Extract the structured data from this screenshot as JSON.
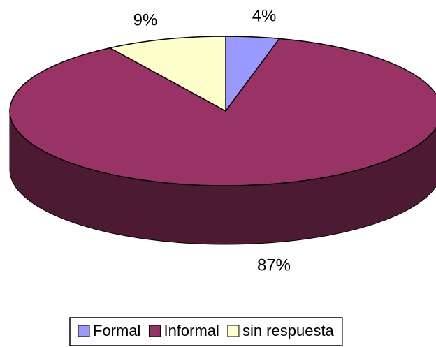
{
  "chart_data": {
    "type": "pie3d",
    "categories": [
      "Formal",
      "Informal",
      "sin respuesta"
    ],
    "values": [
      4,
      87,
      9
    ],
    "value_labels": [
      "4%",
      "87%",
      "9%"
    ],
    "colors": [
      "#9999ff",
      "#993366",
      "#ffffcc"
    ],
    "legend": "bottom"
  }
}
